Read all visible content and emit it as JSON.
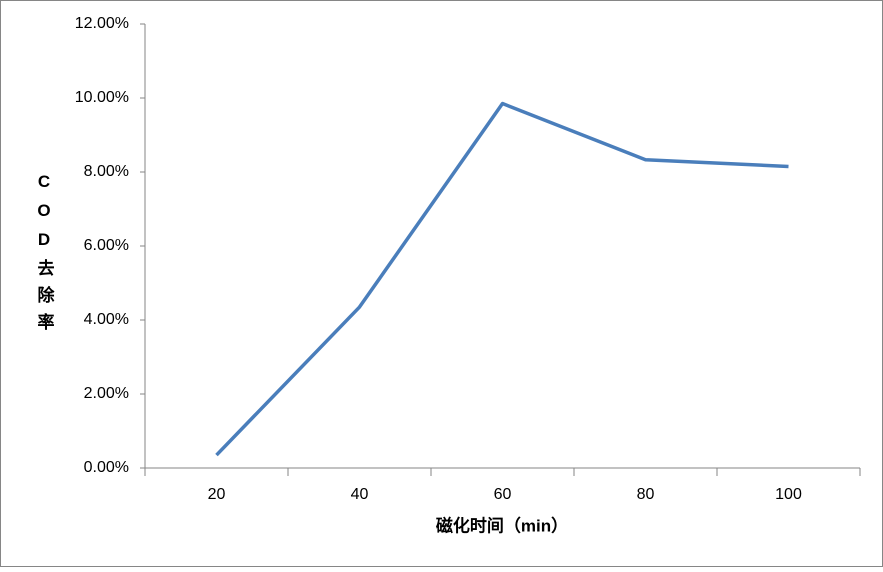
{
  "chart_data": {
    "type": "line",
    "x_label": "磁化时间（min）",
    "y_label": "COD去除率",
    "categories": [
      "20",
      "40",
      "60",
      "80",
      "100"
    ],
    "series": [
      {
        "color": "#4a7ebb",
        "values": [
          0.35,
          4.35,
          9.85,
          8.33,
          8.15
        ]
      }
    ],
    "ylim": [
      0,
      12
    ],
    "yticks": [
      {
        "value": 0,
        "label": "0.00%"
      },
      {
        "value": 2,
        "label": "2.00%"
      },
      {
        "value": 4,
        "label": "4.00%"
      },
      {
        "value": 6,
        "label": "6.00%"
      },
      {
        "value": 8,
        "label": "8.00%"
      },
      {
        "value": 10,
        "label": "10.00%"
      },
      {
        "value": 12,
        "label": "12.00%"
      }
    ],
    "grid": false
  }
}
